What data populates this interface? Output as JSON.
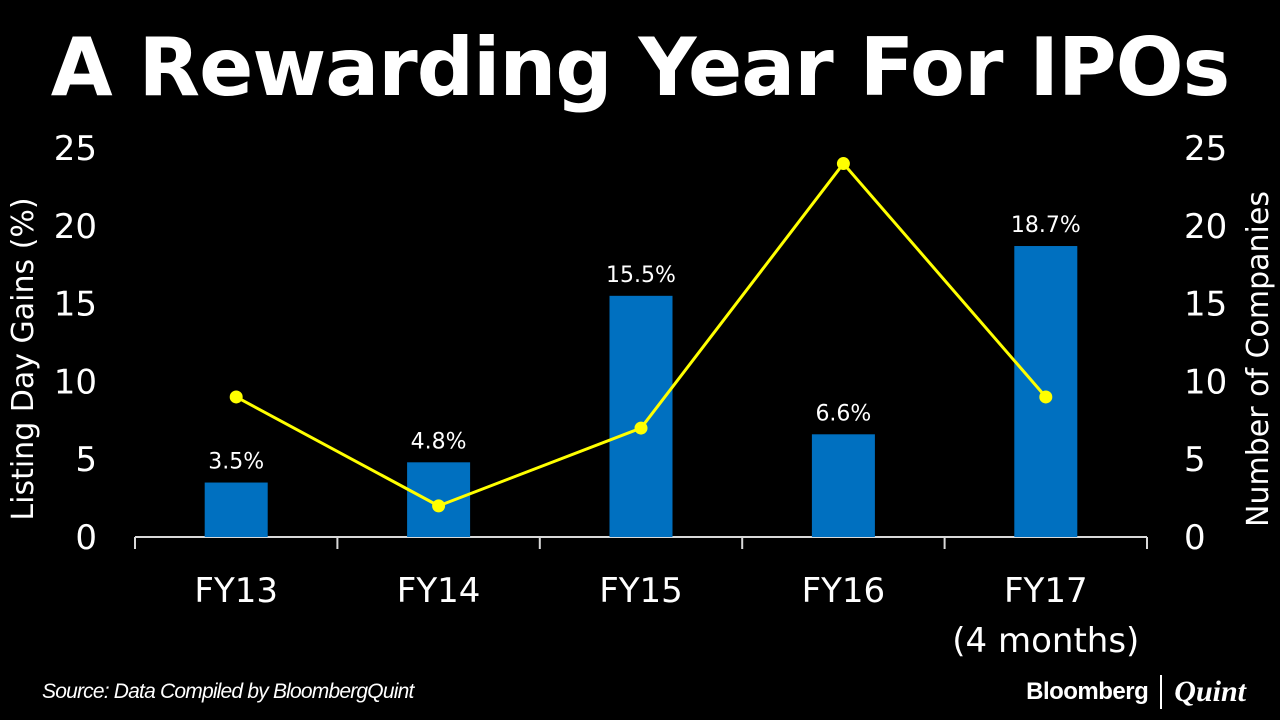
{
  "chart_data": {
    "type": "bar",
    "title": "A Rewarding Year For IPOs",
    "categories": [
      "FY13",
      "FY14",
      "FY15",
      "FY16",
      "FY17"
    ],
    "category_sublabels": [
      "",
      "",
      "",
      "",
      "(4 months)"
    ],
    "series": [
      {
        "name": "Listing Day Gains (%)",
        "type": "bar",
        "axis": "left",
        "color": "#0070C0",
        "values": [
          3.5,
          4.8,
          15.5,
          6.6,
          18.7
        ],
        "data_labels": [
          "3.5%",
          "4.8%",
          "15.5%",
          "6.6%",
          "18.7%"
        ]
      },
      {
        "name": "Number of Companies",
        "type": "line",
        "axis": "right",
        "color": "#FFFF00",
        "values": [
          9,
          2,
          7,
          24,
          9
        ]
      }
    ],
    "ylabel": "Listing Day Gains (%)",
    "y2label": "Number of Companies",
    "ylim": [
      0,
      25
    ],
    "y2lim": [
      0,
      25
    ],
    "yticks": [
      0,
      5,
      10,
      15,
      20,
      25
    ],
    "y2ticks": [
      0,
      5,
      10,
      15,
      20,
      25
    ],
    "grid": false
  },
  "footer": {
    "source": "Source: Data Compiled by BloombergQuint",
    "brand_primary": "Bloomberg",
    "brand_secondary": "Quint"
  }
}
